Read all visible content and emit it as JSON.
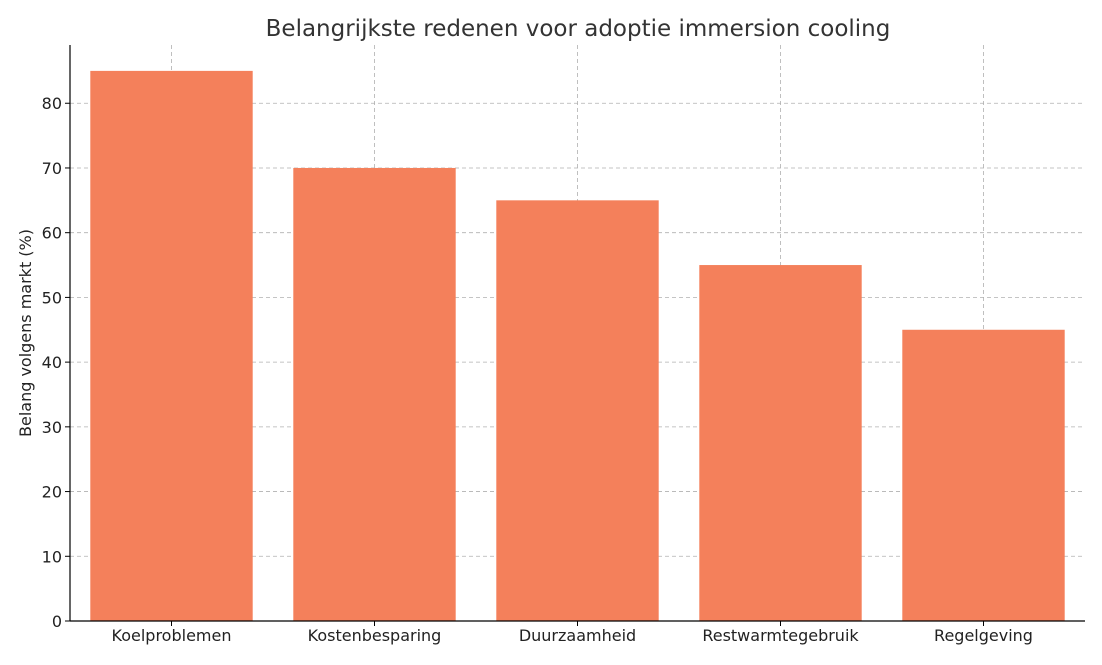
{
  "chart_data": {
    "type": "bar",
    "title": "Belangrijkste redenen voor adoptie immersion cooling",
    "xlabel": "",
    "ylabel": "Belang volgens markt (%)",
    "categories": [
      "Koelproblemen",
      "Kostenbesparing",
      "Duurzaamheid",
      "Restwarmtegebruik",
      "Regelgeving"
    ],
    "values": [
      85,
      70,
      65,
      55,
      45
    ],
    "ylim": [
      0,
      89
    ],
    "yticks": [
      0,
      10,
      20,
      30,
      40,
      50,
      60,
      70,
      80
    ],
    "grid": true,
    "bar_color": "#f4805b"
  }
}
